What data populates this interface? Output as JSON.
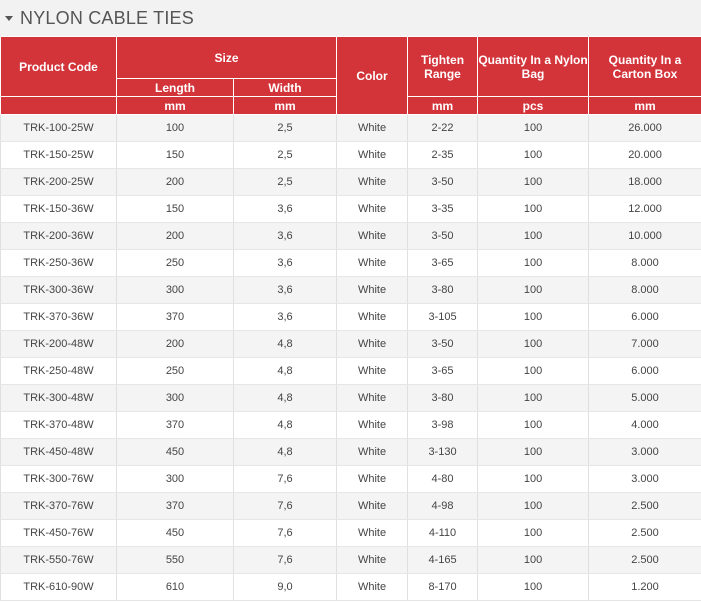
{
  "title": "NYLON CABLE TIES",
  "headers": {
    "product_code": "Product Code",
    "size": "Size",
    "length": "Length",
    "width": "Width",
    "color": "Color",
    "tighten_range": "Tighten Range",
    "qty_bag": "Quantity In a Nylon Bag",
    "qty_carton": "Quantity In a Carton Box",
    "unit_length": "mm",
    "unit_width": "mm",
    "unit_tighten": "mm",
    "unit_bag": "pcs",
    "unit_carton": "mm"
  },
  "rows": [
    [
      "TRK-100-25W",
      "100",
      "2,5",
      "White",
      "2-22",
      "100",
      "26.000"
    ],
    [
      "TRK-150-25W",
      "150",
      "2,5",
      "White",
      "2-35",
      "100",
      "20.000"
    ],
    [
      "TRK-200-25W",
      "200",
      "2,5",
      "White",
      "3-50",
      "100",
      "18.000"
    ],
    [
      "TRK-150-36W",
      "150",
      "3,6",
      "White",
      "3-35",
      "100",
      "12.000"
    ],
    [
      "TRK-200-36W",
      "200",
      "3,6",
      "White",
      "3-50",
      "100",
      "10.000"
    ],
    [
      "TRK-250-36W",
      "250",
      "3,6",
      "White",
      "3-65",
      "100",
      "8.000"
    ],
    [
      "TRK-300-36W",
      "300",
      "3,6",
      "White",
      "3-80",
      "100",
      "8.000"
    ],
    [
      "TRK-370-36W",
      "370",
      "3,6",
      "White",
      "3-105",
      "100",
      "6.000"
    ],
    [
      "TRK-200-48W",
      "200",
      "4,8",
      "White",
      "3-50",
      "100",
      "7.000"
    ],
    [
      "TRK-250-48W",
      "250",
      "4,8",
      "White",
      "3-65",
      "100",
      "6.000"
    ],
    [
      "TRK-300-48W",
      "300",
      "4,8",
      "White",
      "3-80",
      "100",
      "5.000"
    ],
    [
      "TRK-370-48W",
      "370",
      "4,8",
      "White",
      "3-98",
      "100",
      "4.000"
    ],
    [
      "TRK-450-48W",
      "450",
      "4,8",
      "White",
      "3-130",
      "100",
      "3.000"
    ],
    [
      "TRK-300-76W",
      "300",
      "7,6",
      "White",
      "4-80",
      "100",
      "3.000"
    ],
    [
      "TRK-370-76W",
      "370",
      "7,6",
      "White",
      "4-98",
      "100",
      "2.500"
    ],
    [
      "TRK-450-76W",
      "450",
      "7,6",
      "White",
      "4-110",
      "100",
      "2.500"
    ],
    [
      "TRK-550-76W",
      "550",
      "7,6",
      "White",
      "4-165",
      "100",
      "2.500"
    ],
    [
      "TRK-610-90W",
      "610",
      "9,0",
      "White",
      "8-170",
      "100",
      "1.200"
    ]
  ]
}
